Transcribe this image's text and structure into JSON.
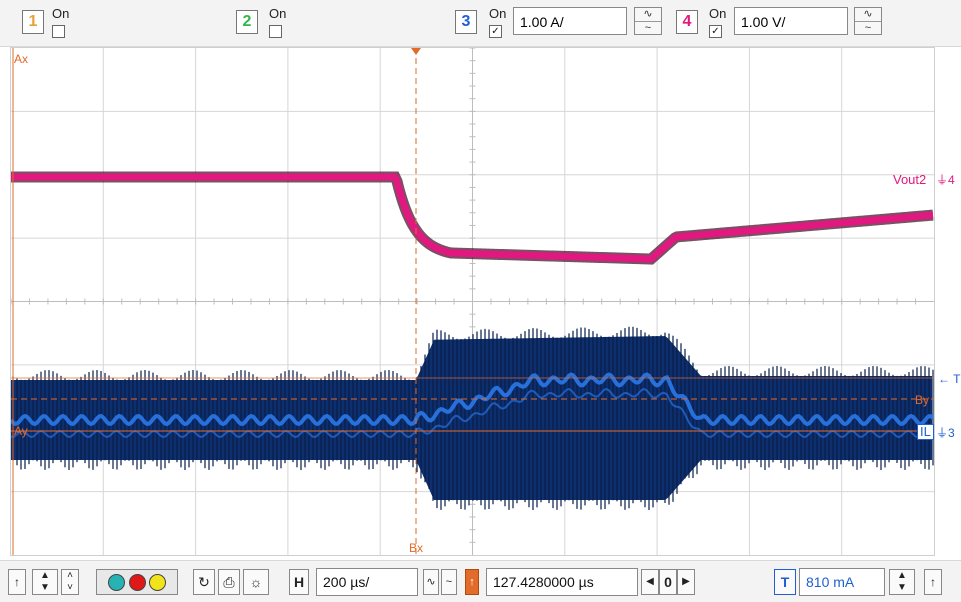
{
  "channels": [
    {
      "num": "1",
      "on_label": "On",
      "checked": false,
      "color": "#e8a23a"
    },
    {
      "num": "2",
      "on_label": "On",
      "checked": false,
      "color": "#2fb84a"
    },
    {
      "num": "3",
      "on_label": "On",
      "checked": true,
      "color": "#1f5fd1",
      "scale": "1.00 A/"
    },
    {
      "num": "4",
      "on_label": "On",
      "checked": true,
      "color": "#e0187f",
      "scale": "1.00 V/"
    }
  ],
  "display": {
    "cursor_labels": {
      "ax": "Ax",
      "ay": "Ay",
      "bx": "Bx",
      "by": "By"
    },
    "trace_labels": {
      "vout": "Vout2",
      "vout_ref": "4",
      "il": "IL",
      "il_ref": "3",
      "trigger": "T"
    },
    "colors": {
      "vout": "#e0187f",
      "il": "#0e2f6e",
      "il_glow": "#2d7cf0",
      "cursor": "#e26b2a"
    }
  },
  "bottom": {
    "horizontal_label": "H",
    "timebase": "200 µs/",
    "trigger_time": "127.4280000 µs",
    "zero_label": "0",
    "trigger_label": "T",
    "trigger_level": "810 mA"
  }
}
